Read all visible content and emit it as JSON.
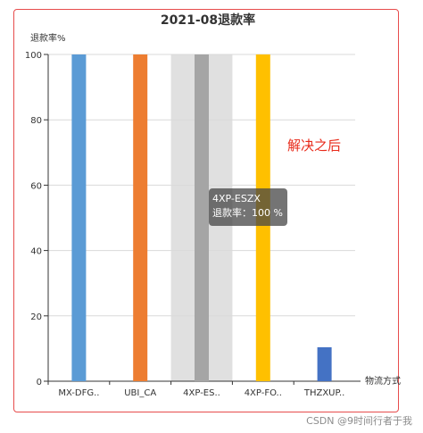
{
  "chart_data": {
    "type": "bar",
    "title": "2021-08退款率",
    "ylabel": "退款率%",
    "xlabel": "物流方式",
    "ylim": [
      0,
      100
    ],
    "yticks": [
      0,
      20,
      40,
      60,
      80,
      100
    ],
    "categories": [
      "MX-DFG..",
      "UBI_CA",
      "4XP-ES..",
      "4XP-FO..",
      "THZXUP.."
    ],
    "values": [
      100,
      100,
      100,
      100,
      10.4
    ],
    "colors": [
      "#5b9bd5",
      "#ed7d31",
      "#a5a5a5",
      "#ffc000",
      "#4472c4"
    ],
    "highlighted_category_index": 2,
    "grid": true
  },
  "tooltip": {
    "title": "4XP-ESZX",
    "line": "退款率：100 %"
  },
  "annotation": "解决之后",
  "watermark": "CSDN @9时间行者于我"
}
